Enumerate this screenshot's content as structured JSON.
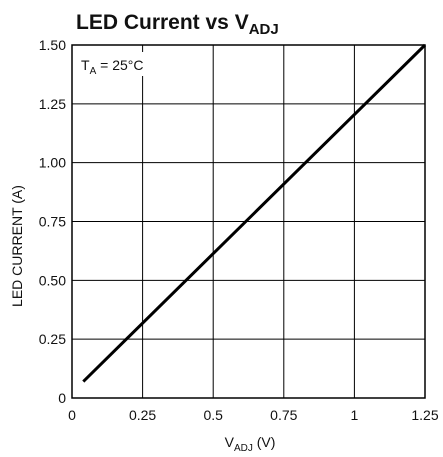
{
  "chart_data": {
    "type": "line",
    "title": "LED Current vs V",
    "title_subscript": "ADJ",
    "xlabel_main": "V",
    "xlabel_sub": "ADJ",
    "xlabel_unit": " (V)",
    "ylabel": "LED CURRENT (A)",
    "annotation_main": "T",
    "annotation_sub": "A",
    "annotation_rest": " = 25°C",
    "xlim": [
      0,
      1.25
    ],
    "ylim": [
      0,
      1.5
    ],
    "x_ticks": [
      0,
      0.25,
      0.5,
      0.75,
      1,
      1.25
    ],
    "x_tick_labels": [
      "0",
      "0.25",
      "0.5",
      "0.75",
      "1",
      "1.25"
    ],
    "y_ticks": [
      0,
      0.25,
      0.5,
      0.75,
      1.0,
      1.25,
      1.5
    ],
    "y_tick_labels": [
      "0",
      "0.25",
      "0.50",
      "0.75",
      "1.00",
      "1.25",
      "1.50"
    ],
    "grid": true,
    "series": [
      {
        "x": [
          0.04,
          1.25
        ],
        "y": [
          0.07,
          1.5
        ],
        "color": "#000000"
      }
    ]
  }
}
